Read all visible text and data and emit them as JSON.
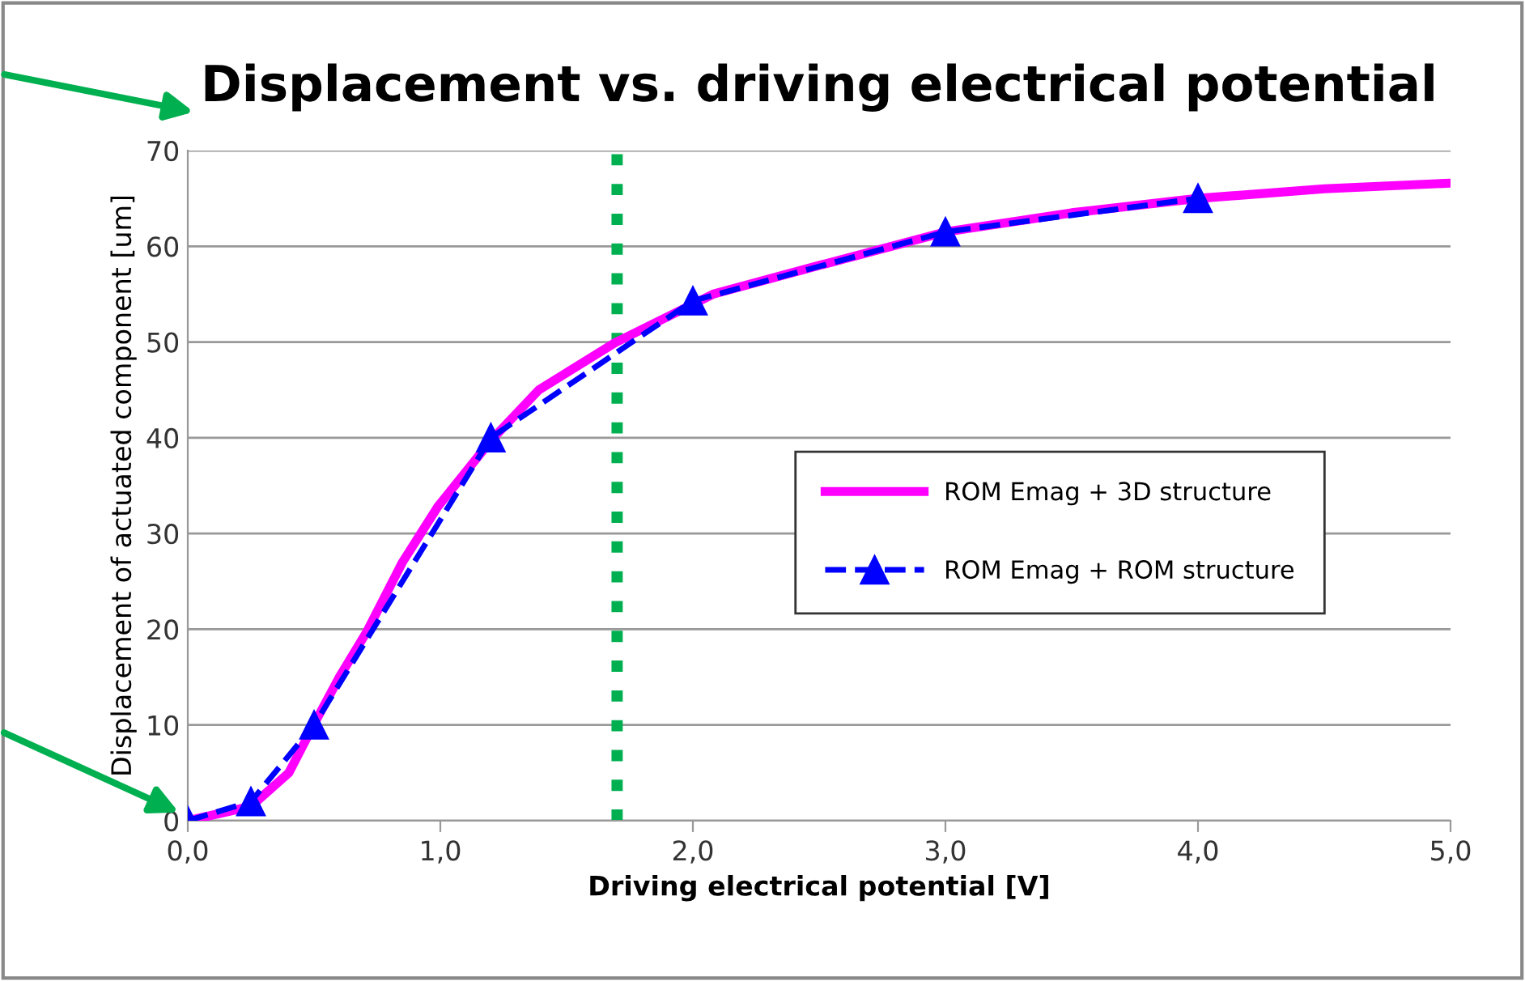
{
  "chart_data": {
    "type": "line",
    "title": "Displacement vs. driving electrical potential",
    "xlabel": "Driving electrical potential [V]",
    "ylabel": "Displacement of actuated component [um]",
    "series": [
      {
        "name": "ROM Emag + 3D structure",
        "color": "#ff00ff",
        "marker": "none",
        "line_style": "solid",
        "x": [
          0,
          0.25,
          0.4,
          0.49,
          0.6,
          0.71,
          0.85,
          0.99,
          1.2,
          1.39,
          1.69,
          2.08,
          2.5,
          3,
          3.5,
          4,
          4.5,
          5
        ],
        "values": [
          0,
          1.5,
          5,
          9.6,
          15,
          19.8,
          27,
          32.8,
          39.7,
          45,
          49.9,
          55,
          58,
          61.5,
          63.5,
          65,
          66,
          66.6
        ]
      },
      {
        "name": "ROM Emag + ROM structure",
        "color": "#0000ff",
        "marker": "triangle",
        "line_style": "dashed",
        "x": [
          0,
          0.25,
          0.5,
          1.2,
          2,
          3,
          4
        ],
        "values": [
          0,
          2,
          10,
          40,
          54.3,
          61.5,
          65
        ]
      }
    ],
    "ref_lines": [
      {
        "axis": "x",
        "value": 1.7,
        "color": "#00b050",
        "line_style": "dotted"
      }
    ],
    "xlim": [
      0,
      5
    ],
    "ylim": [
      0,
      70
    ],
    "xticks": [
      {
        "value": 0,
        "label": "0,0"
      },
      {
        "value": 1,
        "label": "1,0"
      },
      {
        "value": 2,
        "label": "2,0"
      },
      {
        "value": 3,
        "label": "3,0"
      },
      {
        "value": 4,
        "label": "4,0"
      },
      {
        "value": 5,
        "label": "5,0"
      }
    ],
    "yticks": [
      0,
      10,
      20,
      30,
      40,
      50,
      60,
      70
    ],
    "grid": "y",
    "legend": "right"
  }
}
